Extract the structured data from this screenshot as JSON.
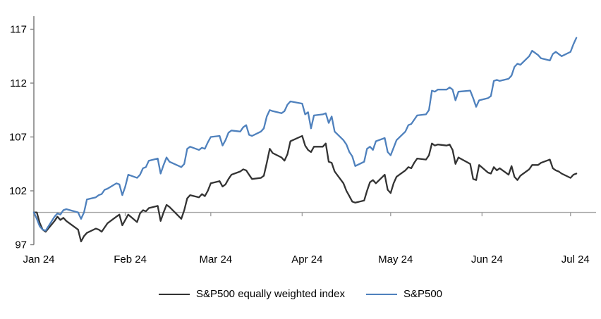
{
  "chart_data": {
    "type": "line",
    "title": "",
    "xlabel": "",
    "ylabel": "",
    "background_color": "#ffffff",
    "axis_color": "#7f7f7f",
    "baseline_color": "#a3a3a3",
    "text_color": "#000000",
    "grid": "off",
    "legend_position": "bottom-center",
    "y_axis": {
      "ticks": [
        117,
        112,
        107,
        102,
        97
      ],
      "min": 97,
      "max": 118.2
    },
    "x_axis": {
      "tick_labels": [
        "Jan 24",
        "Feb 24",
        "Mar 24",
        "Apr 24",
        "May 24",
        "Jun 24",
        "Jul 24"
      ],
      "tick_days": [
        0,
        31,
        60,
        91,
        121,
        152,
        182
      ]
    },
    "baseline_value": 100,
    "x_days": [
      0,
      1,
      2,
      3,
      4,
      7,
      8,
      9,
      10,
      11,
      15,
      16,
      17,
      18,
      21,
      22,
      23,
      24,
      25,
      28,
      29,
      30,
      31,
      32,
      35,
      36,
      37,
      38,
      39,
      42,
      43,
      44,
      45,
      46,
      50,
      51,
      52,
      53,
      56,
      57,
      58,
      59,
      60,
      63,
      64,
      65,
      66,
      67,
      70,
      71,
      72,
      73,
      74,
      77,
      78,
      79,
      80,
      81,
      84,
      85,
      86,
      87,
      91,
      92,
      93,
      94,
      95,
      98,
      99,
      100,
      101,
      102,
      105,
      106,
      107,
      108,
      109,
      112,
      113,
      114,
      115,
      116,
      119,
      120,
      121,
      122,
      123,
      126,
      127,
      128,
      129,
      130,
      133,
      134,
      135,
      136,
      137,
      140,
      141,
      142,
      143,
      144,
      148,
      149,
      150,
      151,
      154,
      155,
      156,
      157,
      158,
      161,
      162,
      163,
      164,
      165,
      168,
      169,
      171,
      172,
      175,
      176,
      177,
      178,
      179,
      182,
      183,
      184
    ],
    "series": [
      {
        "name": "S&P500 equally weighted index",
        "color": "#333333",
        "values": [
          100.0,
          100.0,
          99.0,
          98.4,
          98.2,
          99.2,
          99.6,
          99.3,
          99.5,
          99.2,
          98.4,
          97.3,
          97.8,
          98.1,
          98.5,
          98.4,
          98.2,
          98.6,
          99.0,
          99.6,
          99.8,
          98.8,
          99.3,
          99.8,
          99.1,
          99.9,
          100.2,
          100.1,
          100.4,
          100.6,
          99.2,
          100.0,
          100.7,
          100.5,
          99.4,
          100.2,
          101.3,
          101.6,
          101.4,
          101.7,
          101.5,
          102.0,
          102.7,
          102.9,
          102.4,
          102.6,
          103.1,
          103.5,
          103.8,
          104.0,
          103.9,
          103.5,
          103.1,
          103.2,
          103.4,
          104.6,
          105.9,
          105.5,
          105.1,
          104.8,
          105.4,
          106.6,
          107.1,
          106.2,
          105.8,
          105.6,
          106.1,
          106.1,
          106.4,
          104.7,
          104.6,
          103.8,
          102.7,
          102.0,
          101.5,
          101.0,
          100.9,
          101.1,
          102.0,
          102.8,
          103.0,
          102.7,
          103.5,
          102.1,
          101.8,
          102.7,
          103.3,
          103.9,
          104.2,
          104.1,
          104.6,
          105.0,
          104.9,
          105.3,
          106.4,
          106.2,
          106.3,
          106.2,
          106.3,
          105.8,
          104.5,
          105.1,
          104.5,
          103.1,
          103.0,
          104.4,
          103.7,
          103.6,
          104.2,
          103.9,
          104.1,
          103.5,
          104.3,
          103.3,
          103.0,
          103.4,
          104.0,
          104.4,
          104.4,
          104.6,
          104.9,
          104.1,
          103.9,
          103.8,
          103.6,
          103.2,
          103.5,
          103.6
        ]
      },
      {
        "name": "S&P500",
        "color": "#4f81bd",
        "values": [
          100.0,
          99.4,
          98.7,
          98.4,
          98.3,
          99.6,
          99.9,
          99.8,
          100.2,
          100.3,
          100.0,
          99.4,
          100.0,
          101.2,
          101.4,
          101.6,
          101.7,
          102.1,
          102.2,
          102.7,
          102.6,
          101.6,
          102.4,
          103.5,
          103.2,
          103.5,
          104.1,
          104.2,
          104.8,
          105.0,
          103.6,
          104.4,
          105.1,
          104.7,
          104.2,
          104.5,
          105.9,
          106.1,
          105.8,
          106.0,
          105.9,
          106.5,
          107.0,
          107.1,
          106.2,
          106.7,
          107.4,
          107.6,
          107.5,
          107.9,
          108.1,
          107.2,
          107.1,
          107.5,
          107.8,
          108.9,
          109.5,
          109.4,
          109.2,
          109.4,
          110.0,
          110.3,
          110.1,
          109.1,
          109.3,
          107.8,
          109.0,
          109.1,
          109.2,
          108.3,
          108.9,
          107.5,
          106.7,
          106.3,
          105.6,
          105.2,
          104.3,
          104.7,
          105.9,
          106.1,
          105.8,
          106.6,
          106.9,
          105.6,
          105.3,
          106.0,
          106.7,
          107.5,
          108.1,
          108.2,
          108.6,
          109.0,
          109.1,
          109.5,
          111.3,
          111.2,
          111.4,
          111.4,
          111.6,
          111.4,
          110.4,
          111.2,
          111.3,
          110.6,
          109.8,
          110.4,
          110.6,
          110.8,
          112.2,
          112.3,
          112.2,
          112.4,
          112.7,
          113.5,
          113.8,
          113.7,
          114.5,
          115.0,
          114.6,
          114.3,
          114.1,
          114.7,
          114.9,
          114.7,
          114.5,
          114.9,
          115.6,
          116.2
        ]
      }
    ]
  }
}
